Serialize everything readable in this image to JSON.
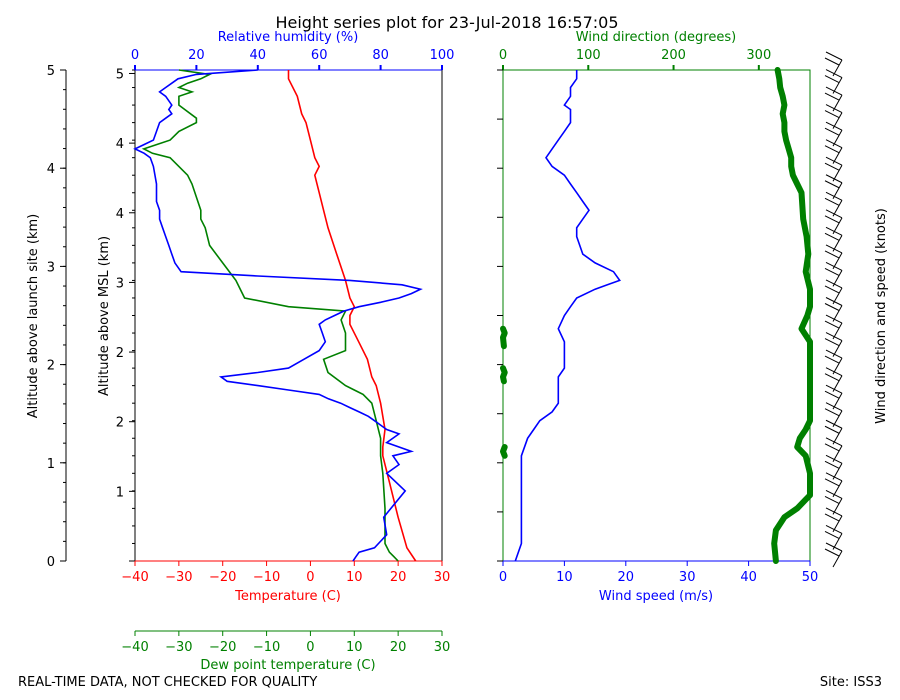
{
  "title": "Height series plot for 23-Jul-2018 16:57:05",
  "footer_left": "REAL-TIME DATA, NOT CHECKED FOR QUALITY",
  "footer_right": "Site: ISS3",
  "colors": {
    "temperature": "#ff0000",
    "dewpoint": "#008000",
    "rh": "#0000ff",
    "wind_speed": "#0000ff",
    "wind_dir": "#008000",
    "barbs": "#000000"
  },
  "chart_data": [
    {
      "type": "line",
      "title": "",
      "ylabel_left": "Altitude above launch site (km)",
      "ylabel_inner": "Altitude above MSL (km)",
      "y_left_ticks": [
        "0",
        "1",
        "2",
        "3",
        "4",
        "5"
      ],
      "y_inner_ticks": [
        "1",
        "2",
        "2",
        "3",
        "4",
        "4",
        "5"
      ],
      "ylim_launch_km": [
        0,
        5
      ],
      "axes": {
        "temperature": {
          "label": "Temperature (C)",
          "range": [
            -40,
            30
          ],
          "ticks": [
            "−40",
            "−30",
            "−20",
            "−10",
            "0",
            "10",
            "20",
            "30"
          ]
        },
        "dewpoint": {
          "label": "Dew point temperature (C)",
          "range": [
            -40,
            30
          ],
          "ticks": [
            "−40",
            "−30",
            "−20",
            "−10",
            "0",
            "10",
            "20",
            "30"
          ]
        },
        "relative_humidity": {
          "label": "Relative humidity (%)",
          "range": [
            0,
            100
          ],
          "ticks": [
            "0",
            "20",
            "40",
            "60",
            "80",
            "100"
          ]
        }
      },
      "series": [
        {
          "name": "Temperature (C)",
          "points": [
            [
              24,
              0
            ],
            [
              22,
              0.15
            ],
            [
              20,
              0.5
            ],
            [
              18,
              0.9
            ],
            [
              16.5,
              1.2
            ],
            [
              16.5,
              1.3
            ],
            [
              17,
              1.5
            ],
            [
              16,
              1.8
            ],
            [
              15,
              2.0
            ],
            [
              14,
              2.1
            ],
            [
              13,
              2.3
            ],
            [
              11,
              2.5
            ],
            [
              9,
              2.7
            ],
            [
              9,
              2.8
            ],
            [
              10,
              2.9
            ],
            [
              9,
              3.0
            ],
            [
              8,
              3.2
            ],
            [
              6,
              3.5
            ],
            [
              4,
              3.8
            ],
            [
              3,
              4.0
            ],
            [
              2,
              4.2
            ],
            [
              1,
              4.4
            ],
            [
              2,
              4.5
            ],
            [
              1,
              4.6
            ],
            [
              0,
              4.8
            ],
            [
              -1,
              5.0
            ],
            [
              -2,
              5.1
            ],
            [
              -3,
              5.3
            ],
            [
              -5,
              5.5
            ],
            [
              -5,
              5.6
            ]
          ]
        },
        {
          "name": "Dew point temperature (C)",
          "points": [
            [
              20,
              0
            ],
            [
              19,
              0.05
            ],
            [
              18,
              0.1
            ],
            [
              17,
              0.2
            ],
            [
              17,
              0.6
            ],
            [
              16.5,
              1.0
            ],
            [
              16,
              1.2
            ],
            [
              16,
              1.4
            ],
            [
              15,
              1.6
            ],
            [
              14,
              1.8
            ],
            [
              12,
              1.9
            ],
            [
              10,
              1.95
            ],
            [
              8,
              2.0
            ],
            [
              4,
              2.15
            ],
            [
              3,
              2.3
            ],
            [
              8,
              2.4
            ],
            [
              8,
              2.6
            ],
            [
              7,
              2.75
            ],
            [
              8,
              2.85
            ],
            [
              -5,
              2.9
            ],
            [
              -15,
              3.0
            ],
            [
              -17,
              3.2
            ],
            [
              -20,
              3.4
            ],
            [
              -23,
              3.6
            ],
            [
              -24,
              3.8
            ],
            [
              -25,
              3.9
            ],
            [
              -25,
              4.0
            ],
            [
              -27,
              4.3
            ],
            [
              -28,
              4.4
            ],
            [
              -32,
              4.6
            ],
            [
              -36,
              4.65
            ],
            [
              -38,
              4.7
            ],
            [
              -35,
              4.75
            ],
            [
              -32,
              4.8
            ],
            [
              -30,
              4.9
            ],
            [
              -26,
              5.0
            ],
            [
              -26,
              5.05
            ],
            [
              -30,
              5.2
            ],
            [
              -30,
              5.3
            ],
            [
              -27,
              5.35
            ],
            [
              -30,
              5.4
            ],
            [
              -28,
              5.45
            ],
            [
              -25,
              5.5
            ],
            [
              -23,
              5.55
            ],
            [
              -30,
              5.6
            ]
          ]
        },
        {
          "name": "Relative humidity (%)",
          "points": [
            [
              71,
              0
            ],
            [
              72,
              0.05
            ],
            [
              73,
              0.1
            ],
            [
              78,
              0.15
            ],
            [
              82,
              0.3
            ],
            [
              81,
              0.5
            ],
            [
              88,
              0.8
            ],
            [
              82,
              1.0
            ],
            [
              86,
              1.1
            ],
            [
              84,
              1.2
            ],
            [
              90,
              1.25
            ],
            [
              82,
              1.35
            ],
            [
              86,
              1.45
            ],
            [
              82,
              1.5
            ],
            [
              80,
              1.55
            ],
            [
              78,
              1.6
            ],
            [
              76,
              1.65
            ],
            [
              73,
              1.7
            ],
            [
              70,
              1.75
            ],
            [
              67,
              1.8
            ],
            [
              63,
              1.85
            ],
            [
              60,
              1.9
            ],
            [
              50,
              1.95
            ],
            [
              40,
              2.0
            ],
            [
              30,
              2.05
            ],
            [
              28,
              2.1
            ],
            [
              40,
              2.15
            ],
            [
              50,
              2.2
            ],
            [
              55,
              2.3
            ],
            [
              60,
              2.4
            ],
            [
              62,
              2.5
            ],
            [
              61,
              2.6
            ],
            [
              60,
              2.7
            ],
            [
              62,
              2.75
            ],
            [
              65,
              2.8
            ],
            [
              68,
              2.85
            ],
            [
              73,
              2.9
            ],
            [
              80,
              2.95
            ],
            [
              86,
              3.0
            ],
            [
              90,
              3.05
            ],
            [
              93,
              3.1
            ],
            [
              87,
              3.15
            ],
            [
              70,
              3.2
            ],
            [
              40,
              3.25
            ],
            [
              15,
              3.3
            ],
            [
              13,
              3.4
            ],
            [
              12,
              3.5
            ],
            [
              11,
              3.6
            ],
            [
              10,
              3.7
            ],
            [
              9,
              3.8
            ],
            [
              8,
              3.9
            ],
            [
              8,
              4.0
            ],
            [
              7,
              4.1
            ],
            [
              7,
              4.3
            ],
            [
              6,
              4.5
            ],
            [
              5,
              4.6
            ],
            [
              3,
              4.65
            ],
            [
              0,
              4.7
            ],
            [
              3,
              4.75
            ],
            [
              6,
              4.8
            ],
            [
              7,
              4.9
            ],
            [
              8,
              5.0
            ],
            [
              10,
              5.05
            ],
            [
              12,
              5.1
            ],
            [
              11,
              5.15
            ],
            [
              12,
              5.2
            ],
            [
              10,
              5.3
            ],
            [
              8,
              5.35
            ],
            [
              10,
              5.4
            ],
            [
              12,
              5.45
            ],
            [
              14,
              5.5
            ],
            [
              20,
              5.55
            ],
            [
              40,
              5.6
            ]
          ]
        }
      ]
    },
    {
      "type": "line",
      "title": "",
      "ylabel_right": "Wind direction and speed (knots)",
      "axes": {
        "wind_speed": {
          "label": "Wind speed (m/s)",
          "range": [
            0,
            50
          ],
          "ticks": [
            "0",
            "10",
            "20",
            "30",
            "40",
            "50"
          ]
        },
        "wind_direction": {
          "label": "Wind direction (degrees)",
          "range": [
            0,
            360
          ],
          "ticks": [
            "0",
            "100",
            "200",
            "300"
          ]
        }
      },
      "series": [
        {
          "name": "Wind speed (m/s)",
          "points": [
            [
              2,
              0
            ],
            [
              3,
              0.2
            ],
            [
              3,
              0.6
            ],
            [
              3,
              1.0
            ],
            [
              3,
              1.2
            ],
            [
              4,
              1.4
            ],
            [
              5,
              1.5
            ],
            [
              6,
              1.6
            ],
            [
              8,
              1.7
            ],
            [
              9,
              1.8
            ],
            [
              9,
              2.1
            ],
            [
              10,
              2.2
            ],
            [
              10,
              2.5
            ],
            [
              9,
              2.65
            ],
            [
              10,
              2.8
            ],
            [
              11,
              2.9
            ],
            [
              12,
              3.0
            ],
            [
              15,
              3.1
            ],
            [
              17,
              3.15
            ],
            [
              19,
              3.2
            ],
            [
              18,
              3.3
            ],
            [
              15,
              3.4
            ],
            [
              13,
              3.5
            ],
            [
              12,
              3.7
            ],
            [
              12,
              3.8
            ],
            [
              13,
              3.9
            ],
            [
              14,
              4.0
            ],
            [
              13,
              4.1
            ],
            [
              12,
              4.2
            ],
            [
              11,
              4.3
            ],
            [
              10,
              4.4
            ],
            [
              8,
              4.5
            ],
            [
              7,
              4.6
            ],
            [
              8,
              4.7
            ],
            [
              9,
              4.8
            ],
            [
              10,
              4.9
            ],
            [
              11,
              5.0
            ],
            [
              11,
              5.05
            ],
            [
              11,
              5.15
            ],
            [
              10,
              5.2
            ],
            [
              11,
              5.3
            ],
            [
              11,
              5.4
            ],
            [
              12,
              5.5
            ],
            [
              12,
              5.6
            ]
          ]
        },
        {
          "name": "Wind direction (degrees)",
          "points": [
            [
              320,
              0
            ],
            [
              318,
              0.2
            ],
            [
              320,
              0.35
            ],
            [
              330,
              0.5
            ],
            [
              345,
              0.6
            ],
            [
              355,
              0.7
            ],
            [
              360,
              0.75
            ],
            [
              360,
              1.0
            ],
            [
              355,
              1.2
            ],
            [
              345,
              1.3
            ],
            [
              348,
              1.4
            ],
            [
              355,
              1.5
            ],
            [
              360,
              1.6
            ],
            [
              360,
              2.5
            ],
            [
              350,
              2.65
            ],
            [
              357,
              2.8
            ],
            [
              360,
              2.9
            ],
            [
              360,
              3.1
            ],
            [
              355,
              3.3
            ],
            [
              358,
              3.5
            ],
            [
              356,
              3.7
            ],
            [
              352,
              3.9
            ],
            [
              350,
              4.2
            ],
            [
              345,
              4.3
            ],
            [
              340,
              4.4
            ],
            [
              338,
              4.5
            ],
            [
              338,
              4.6
            ],
            [
              335,
              4.7
            ],
            [
              332,
              4.8
            ],
            [
              330,
              4.9
            ],
            [
              330,
              5.0
            ],
            [
              328,
              5.1
            ],
            [
              330,
              5.2
            ],
            [
              328,
              5.3
            ],
            [
              325,
              5.4
            ],
            [
              324,
              5.5
            ],
            [
              322,
              5.6
            ]
          ]
        },
        {
          "name": "Wind direction (degrees)",
          "points": [
            [
              2,
              1.2
            ],
            [
              0,
              1.25
            ],
            [
              2,
              1.3
            ]
          ]
        },
        {
          "name": "Wind direction (degrees)",
          "points": [
            [
              1,
              2.05
            ],
            [
              0,
              2.1
            ],
            [
              2,
              2.15
            ],
            [
              0,
              2.2
            ]
          ]
        },
        {
          "name": "Wind direction (degrees)",
          "points": [
            [
              1,
              2.45
            ],
            [
              0,
              2.55
            ],
            [
              2,
              2.6
            ],
            [
              0,
              2.65
            ]
          ]
        }
      ],
      "barbs": {
        "altitudes_km": [
          0.0,
          0.2,
          0.4,
          0.6,
          0.8,
          1.0,
          1.2,
          1.4,
          1.6,
          1.8,
          2.0,
          2.2,
          2.4,
          2.6,
          2.8,
          3.0,
          3.2,
          3.4,
          3.6,
          3.8,
          4.0,
          4.2,
          4.4,
          4.6,
          4.8,
          5.0,
          5.2,
          5.4,
          5.6
        ]
      }
    }
  ]
}
